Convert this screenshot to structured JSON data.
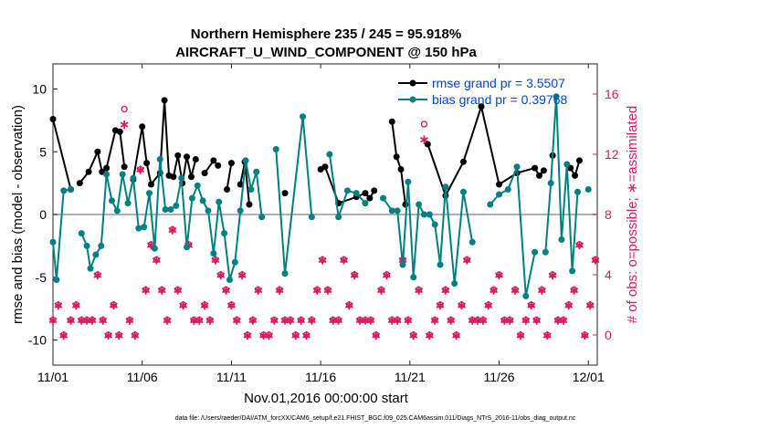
{
  "chart_data": {
    "type": "line",
    "title_line1": "Northern Hemisphere 235 / 245 = 95.918%",
    "title_line2": "AIRCRAFT_U_WIND_COMPONENT @ 150 hPa",
    "xlabel": "Nov.01,2016 00:00:00 start",
    "ylabel_left": "rmse and bias (model - observation)",
    "ylabel_right": "# of obs: o=possible; ∗=assimilated",
    "footer": "data file: /Users/raeder/DAI/ATM_forcXX/CAM6_setup/f.e21.FHIST_BGC.f09_025.CAM6assim.011/Diags_NTrS_2016-11/obs_diag_output.nc",
    "xlim": [
      0,
      30.5
    ],
    "ylim_left": [
      -12,
      12
    ],
    "ylim_right": [
      -2,
      18
    ],
    "x_ticks": [
      0,
      5,
      10,
      15,
      20,
      25,
      30
    ],
    "x_tick_labels": [
      "11/01",
      "11/06",
      "11/11",
      "11/16",
      "11/21",
      "11/26",
      "12/01"
    ],
    "y_ticks_left": [
      -10,
      -5,
      0,
      5,
      10
    ],
    "y_tick_labels_left": [
      "-10",
      "-5",
      "0",
      "5",
      "10"
    ],
    "y_ticks_right": [
      0,
      4,
      8,
      12,
      16
    ],
    "y_tick_labels_right": [
      "0",
      "4",
      "8",
      "12",
      "16"
    ],
    "zero_line": 0,
    "legend": {
      "location": "top-right",
      "entries": [
        "rmse grand pr = 3.5507",
        "bias grand pr = 0.39768"
      ]
    },
    "colors": {
      "rmse": "#000000",
      "bias": "#008080",
      "obs": "#d81b60",
      "zero": "#b0b0b0",
      "legend_text": "#0047d8"
    },
    "series": [
      {
        "name": "rmse",
        "x": [
          0,
          1,
          1.25,
          1.5,
          2,
          2.5,
          2.75,
          3,
          3.5,
          3.75,
          4,
          4.25,
          4.5,
          5,
          5.25,
          5.5,
          6,
          6.25,
          6.5,
          6.75,
          7,
          7.25,
          7.5,
          7.75,
          8,
          8.25,
          8.5,
          9,
          9.25,
          9.5,
          9.75,
          10,
          10.25,
          10.5,
          10.75,
          11,
          12,
          13,
          14,
          15,
          15.25,
          16,
          17,
          17.5,
          17.75,
          18,
          18.5,
          19,
          19.25,
          19.5,
          19.75,
          20,
          20.5,
          21,
          22,
          23,
          24,
          25,
          26,
          27,
          27.25,
          27.5,
          27.75,
          28,
          28.5,
          29,
          29.25,
          29.5,
          30
        ],
        "y": [
          7.6,
          2,
          null,
          2.5,
          3.4,
          5,
          3.4,
          3.7,
          6.7,
          6.6,
          3.8,
          null,
          2.8,
          7,
          4.1,
          2.4,
          3.3,
          9.1,
          3.1,
          3.0,
          4.7,
          2.5,
          4.6,
          3.0,
          4.4,
          null,
          3.3,
          4.3,
          3.9,
          null,
          2.0,
          4.1,
          null,
          2.4,
          4.2,
          0.8,
          null,
          1.7,
          null,
          3.6,
          3.8,
          0.9,
          1.4,
          1.7,
          1.3,
          1.9,
          null,
          7.4,
          4.6,
          3.6,
          0.8,
          null,
          null,
          5.6,
          1.5,
          4.2,
          8.6,
          2.4,
          3.3,
          3.7,
          3.1,
          3.5,
          null,
          4.7,
          null,
          3.7,
          3.1,
          4.3,
          null
        ]
      },
      {
        "name": "bias",
        "x": [
          0,
          0.2,
          0.6,
          1,
          1.3,
          1.6,
          1.9,
          2.1,
          2.4,
          2.7,
          3,
          3.3,
          3.6,
          3.9,
          4.2,
          4.5,
          4.8,
          5.1,
          5.4,
          5.7,
          6,
          6.3,
          6.6,
          6.9,
          7.2,
          7.5,
          7.8,
          8.1,
          8.4,
          8.7,
          9,
          9.3,
          9.6,
          9.9,
          10.2,
          10.5,
          10.8,
          11.1,
          11.4,
          11.7,
          12,
          12.5,
          13,
          14,
          14.5,
          15,
          15.5,
          16,
          16.5,
          17,
          17.5,
          18,
          18.5,
          19,
          19.3,
          19.6,
          19.9,
          20.2,
          20.5,
          20.8,
          21.1,
          21.4,
          21.7,
          22,
          22.5,
          23,
          23.5,
          24,
          24.5,
          25,
          25.5,
          26,
          26.5,
          27,
          27.3,
          27.6,
          27.9,
          28.2,
          28.5,
          28.8,
          29.1,
          29.4,
          29.7,
          30
        ],
        "y": [
          -2.2,
          -5.2,
          1.9,
          2,
          null,
          -1.5,
          -2.5,
          -4.3,
          -3.2,
          -2.5,
          3.2,
          1.1,
          0.3,
          3.2,
          0.9,
          2.9,
          -1.1,
          -1.0,
          1.7,
          -2.7,
          4.4,
          0.4,
          0.4,
          0.7,
          2.9,
          -2.6,
          1.3,
          2.3,
          1.1,
          0.3,
          -3.1,
          1.0,
          -1.5,
          -5.2,
          -3.8,
          0.3,
          4.3,
          2.0,
          3.4,
          -0.2,
          null,
          5.2,
          -4.7,
          7.8,
          -0.2,
          null,
          4.8,
          -0.2,
          1.9,
          1.7,
          0.9,
          null,
          1.3,
          0.3,
          0.3,
          -4.0,
          2.6,
          -5.0,
          0.8,
          0,
          0,
          -0.8,
          -4.0,
          2.2,
          -5.5,
          1.8,
          -2.2,
          null,
          0.8,
          1.6,
          2.0,
          3.8,
          -6.5,
          -3.0,
          null,
          -3.0,
          2.5,
          9.4,
          -2.0,
          4.0,
          -4.5,
          1.8,
          null,
          2.0
        ]
      }
    ],
    "obs_possible": {
      "x": [
        0,
        0.3,
        0.6,
        1,
        1.3,
        1.6,
        1.9,
        2.2,
        2.5,
        2.8,
        3.1,
        3.4,
        3.7,
        4,
        4.3,
        4.6,
        4.9,
        5.2,
        5.5,
        5.8,
        6.1,
        6.4,
        6.7,
        7,
        7.3,
        7.6,
        7.9,
        8.2,
        8.5,
        8.8,
        9.1,
        9.4,
        9.7,
        10,
        10.3,
        10.6,
        10.9,
        11.2,
        11.5,
        11.8,
        12.1,
        12.4,
        12.7,
        13,
        13.3,
        13.6,
        13.9,
        14.2,
        14.5,
        14.8,
        15.1,
        15.4,
        15.7,
        16,
        16.3,
        16.6,
        16.9,
        17.2,
        17.5,
        17.8,
        18.1,
        18.4,
        18.7,
        19,
        19.3,
        19.6,
        19.9,
        20.2,
        20.5,
        20.8,
        21.1,
        21.4,
        21.7,
        22,
        22.3,
        22.6,
        22.9,
        23.2,
        23.5,
        23.8,
        24.1,
        24.4,
        24.7,
        25,
        25.3,
        25.6,
        25.9,
        26.2,
        26.5,
        26.8,
        27.1,
        27.4,
        27.7,
        28,
        28.3,
        28.6,
        28.9,
        29.2,
        29.5,
        29.8,
        30.1,
        30.4
      ],
      "y": [
        1,
        2,
        0,
        1,
        2,
        1,
        1,
        1,
        4,
        1,
        0,
        2,
        0,
        15,
        1,
        0,
        11,
        3,
        6,
        5,
        3,
        1,
        7,
        3,
        2,
        6,
        1,
        1,
        2,
        1,
        5,
        4,
        3,
        2,
        1,
        4,
        0,
        1,
        3,
        0,
        0,
        1,
        3,
        1,
        1,
        0,
        1,
        0,
        1,
        3,
        5,
        3,
        1,
        1,
        5,
        2,
        4,
        1,
        1,
        1,
        0,
        3,
        4,
        1,
        1,
        5,
        1,
        0,
        3,
        14,
        0,
        1,
        2,
        3,
        1,
        0,
        2,
        5,
        1,
        1,
        1,
        2,
        3,
        4,
        1,
        1,
        3,
        0,
        1,
        2,
        1,
        3,
        0,
        4,
        1,
        1,
        2,
        3,
        6,
        0,
        2,
        5
      ]
    },
    "obs_assimilated": {
      "x": [
        0,
        0.3,
        0.6,
        1,
        1.3,
        1.6,
        1.9,
        2.2,
        2.5,
        2.8,
        3.1,
        3.4,
        3.7,
        4,
        4.3,
        4.6,
        4.9,
        5.2,
        5.5,
        5.8,
        6.1,
        6.4,
        6.7,
        7,
        7.3,
        7.6,
        7.9,
        8.2,
        8.5,
        8.8,
        9.1,
        9.4,
        9.7,
        10,
        10.3,
        10.6,
        10.9,
        11.2,
        11.5,
        11.8,
        12.1,
        12.4,
        12.7,
        13,
        13.3,
        13.6,
        13.9,
        14.2,
        14.5,
        14.8,
        15.1,
        15.4,
        15.7,
        16,
        16.3,
        16.6,
        16.9,
        17.2,
        17.5,
        17.8,
        18.1,
        18.4,
        18.7,
        19,
        19.3,
        19.6,
        19.9,
        20.2,
        20.5,
        20.8,
        21.1,
        21.4,
        21.7,
        22,
        22.3,
        22.6,
        22.9,
        23.2,
        23.5,
        23.8,
        24.1,
        24.4,
        24.7,
        25,
        25.3,
        25.6,
        25.9,
        26.2,
        26.5,
        26.8,
        27.1,
        27.4,
        27.7,
        28,
        28.3,
        28.6,
        28.9,
        29.2,
        29.5,
        29.8,
        30.1,
        30.4
      ],
      "y": [
        1,
        2,
        0,
        1,
        2,
        1,
        1,
        1,
        4,
        1,
        0,
        2,
        0,
        14,
        1,
        0,
        11,
        3,
        6,
        5,
        3,
        1,
        7,
        3,
        2,
        6,
        1,
        1,
        2,
        1,
        5,
        4,
        3,
        2,
        1,
        4,
        0,
        1,
        3,
        0,
        0,
        1,
        3,
        1,
        1,
        0,
        1,
        0,
        1,
        3,
        5,
        3,
        1,
        1,
        5,
        2,
        4,
        1,
        1,
        1,
        0,
        3,
        4,
        1,
        1,
        5,
        1,
        0,
        3,
        13,
        0,
        1,
        2,
        3,
        1,
        0,
        2,
        5,
        1,
        1,
        1,
        2,
        3,
        4,
        1,
        1,
        3,
        0,
        1,
        2,
        1,
        3,
        0,
        4,
        1,
        1,
        2,
        3,
        6,
        0,
        2,
        5
      ]
    }
  }
}
